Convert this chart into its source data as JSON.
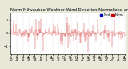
{
  "background_color": "#e8e8d8",
  "plot_bg_color": "#ffffff",
  "n_points": 288,
  "ylim": [
    -1.6,
    1.6
  ],
  "yticks": [
    -1.0,
    0.0,
    1.0
  ],
  "median_value": 0.02,
  "median_color": "#0000bb",
  "bar_color": "#cc0000",
  "legend_median_color": "#0000bb",
  "legend_bar_color": "#cc0000",
  "legend_median_label": "Med",
  "legend_bar_label": "Norm",
  "grid_color": "#bbbbbb",
  "title_color": "#000000",
  "title_fontsize": 3.8,
  "tick_fontsize": 2.8,
  "n_xticks": 20
}
